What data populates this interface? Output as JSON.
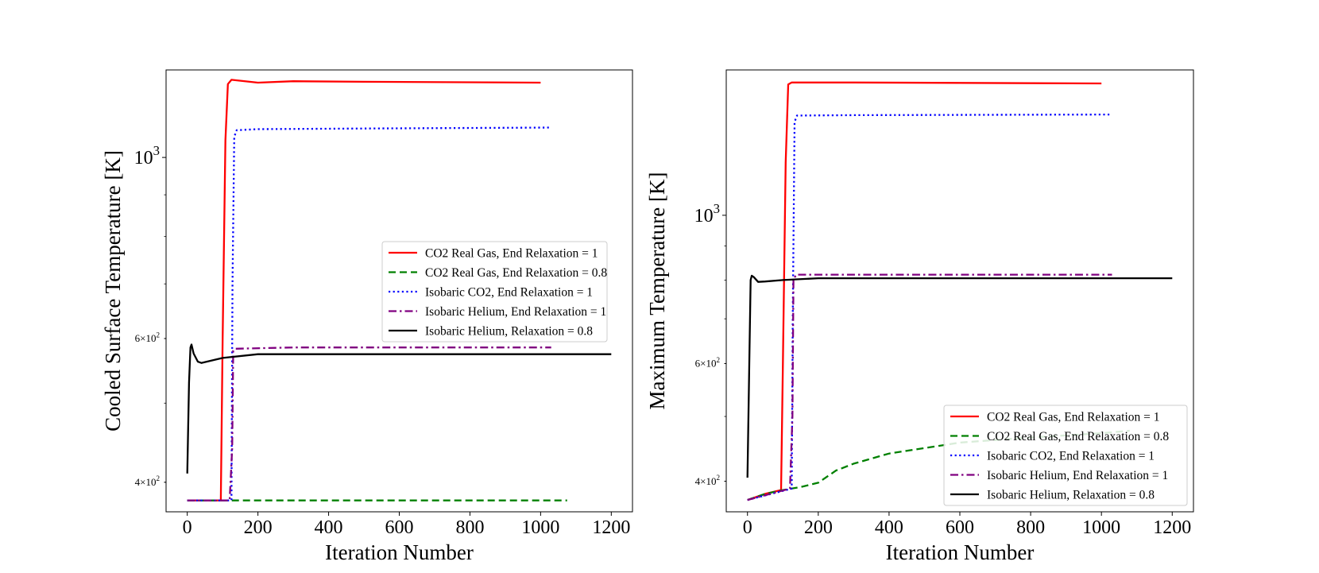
{
  "chart_data": [
    {
      "type": "line",
      "yscale": "log",
      "xlabel": "Iteration Number",
      "ylabel": "Cooled Surface Temperature [K]",
      "xlim": [
        -60,
        1260
      ],
      "ylim": [
        368,
        1280
      ],
      "xticks": [
        0,
        200,
        400,
        600,
        800,
        1000,
        1200
      ],
      "xtick_labels": [
        "0",
        "200",
        "400",
        "600",
        "800",
        "1000",
        "1200"
      ],
      "yticks": [
        {
          "value": 1000,
          "label": "10",
          "sup": "3",
          "major": true
        },
        {
          "value": 600,
          "label": "6×10",
          "sup": "2",
          "major": false
        },
        {
          "value": 400,
          "label": "4×10",
          "sup": "2",
          "major": false
        }
      ],
      "legend_position": "center-right",
      "series": [
        {
          "name": "CO2 Real Gas, End Relaxation = 1",
          "color": "#ff0000",
          "dash": "solid",
          "points": [
            [
              0,
              380
            ],
            [
              95,
              380
            ],
            [
              100,
              600
            ],
            [
              108,
              1050
            ],
            [
              115,
              1230
            ],
            [
              125,
              1245
            ],
            [
              200,
              1235
            ],
            [
              300,
              1240
            ],
            [
              500,
              1238
            ],
            [
              1000,
              1235
            ]
          ]
        },
        {
          "name": "CO2 Real Gas, End Relaxation = 0.8",
          "color": "#008000",
          "dash": "dashed",
          "points": [
            [
              0,
              380
            ],
            [
              1075,
              380
            ]
          ]
        },
        {
          "name": "Isobaric CO2, End Relaxation = 1",
          "color": "#0000ff",
          "dash": "dotted",
          "points": [
            [
              0,
              380
            ],
            [
              125,
              380
            ],
            [
              128,
              700
            ],
            [
              133,
              1060
            ],
            [
              140,
              1080
            ],
            [
              200,
              1083
            ],
            [
              500,
              1085
            ],
            [
              1030,
              1088
            ]
          ]
        },
        {
          "name": "Isobaric Helium, End Relaxation = 1",
          "color": "#800080",
          "dash": "dashdot",
          "points": [
            [
              0,
              380
            ],
            [
              120,
              380
            ],
            [
              127,
              440
            ],
            [
              130,
              580
            ],
            [
              137,
              583
            ],
            [
              300,
              585
            ],
            [
              1030,
              585
            ]
          ]
        },
        {
          "name": "Isobaric Helium, Relaxation = 0.8",
          "color": "#000000",
          "dash": "solid",
          "points": [
            [
              0,
              410
            ],
            [
              5,
              530
            ],
            [
              9,
              585
            ],
            [
              12,
              590
            ],
            [
              18,
              575
            ],
            [
              30,
              562
            ],
            [
              40,
              560
            ],
            [
              100,
              568
            ],
            [
              200,
              574
            ],
            [
              400,
              574
            ],
            [
              1200,
              574
            ]
          ]
        }
      ]
    },
    {
      "type": "line",
      "yscale": "log",
      "xlabel": "Iteration Number",
      "ylabel": "Maximum Temperature [K]",
      "xlim": [
        -60,
        1260
      ],
      "ylim": [
        360,
        1650
      ],
      "xticks": [
        0,
        200,
        400,
        600,
        800,
        1000,
        1200
      ],
      "xtick_labels": [
        "0",
        "200",
        "400",
        "600",
        "800",
        "1000",
        "1200"
      ],
      "yticks": [
        {
          "value": 1000,
          "label": "10",
          "sup": "3",
          "major": true
        },
        {
          "value": 600,
          "label": "6×10",
          "sup": "2",
          "major": false
        },
        {
          "value": 400,
          "label": "4×10",
          "sup": "2",
          "major": false
        }
      ],
      "legend_position": "lower-right",
      "series": [
        {
          "name": "CO2 Real Gas, End Relaxation = 1",
          "color": "#ff0000",
          "dash": "solid",
          "points": [
            [
              0,
              375
            ],
            [
              50,
              383
            ],
            [
              95,
              388
            ],
            [
              100,
              600
            ],
            [
              108,
              1200
            ],
            [
              115,
              1570
            ],
            [
              125,
              1580
            ],
            [
              300,
              1580
            ],
            [
              1000,
              1575
            ]
          ]
        },
        {
          "name": "CO2 Real Gas, End Relaxation = 0.8",
          "color": "#008000",
          "dash": "dashed",
          "points": [
            [
              0,
              375
            ],
            [
              50,
              383
            ],
            [
              100,
              388
            ],
            [
              150,
              392
            ],
            [
              200,
              398
            ],
            [
              250,
              415
            ],
            [
              300,
              425
            ],
            [
              400,
              440
            ],
            [
              600,
              457
            ],
            [
              800,
              465
            ],
            [
              1000,
              472
            ],
            [
              1080,
              476
            ]
          ]
        },
        {
          "name": "Isobaric CO2, End Relaxation = 1",
          "color": "#0000ff",
          "dash": "dotted",
          "points": [
            [
              0,
              375
            ],
            [
              125,
              390
            ],
            [
              128,
              700
            ],
            [
              133,
              1380
            ],
            [
              140,
              1410
            ],
            [
              300,
              1412
            ],
            [
              1030,
              1415
            ]
          ]
        },
        {
          "name": "Isobaric Helium, End Relaxation = 1",
          "color": "#800080",
          "dash": "dashdot",
          "points": [
            [
              0,
              375
            ],
            [
              120,
              390
            ],
            [
              127,
              500
            ],
            [
              130,
              800
            ],
            [
              137,
              815
            ],
            [
              300,
              815
            ],
            [
              1030,
              815
            ]
          ]
        },
        {
          "name": "Isobaric Helium, Relaxation = 0.8",
          "color": "#000000",
          "dash": "solid",
          "points": [
            [
              0,
              405
            ],
            [
              5,
              600
            ],
            [
              9,
              800
            ],
            [
              12,
              812
            ],
            [
              18,
              808
            ],
            [
              30,
              795
            ],
            [
              50,
              796
            ],
            [
              100,
              800
            ],
            [
              200,
              805
            ],
            [
              400,
              805
            ],
            [
              1200,
              805
            ]
          ]
        }
      ]
    }
  ]
}
